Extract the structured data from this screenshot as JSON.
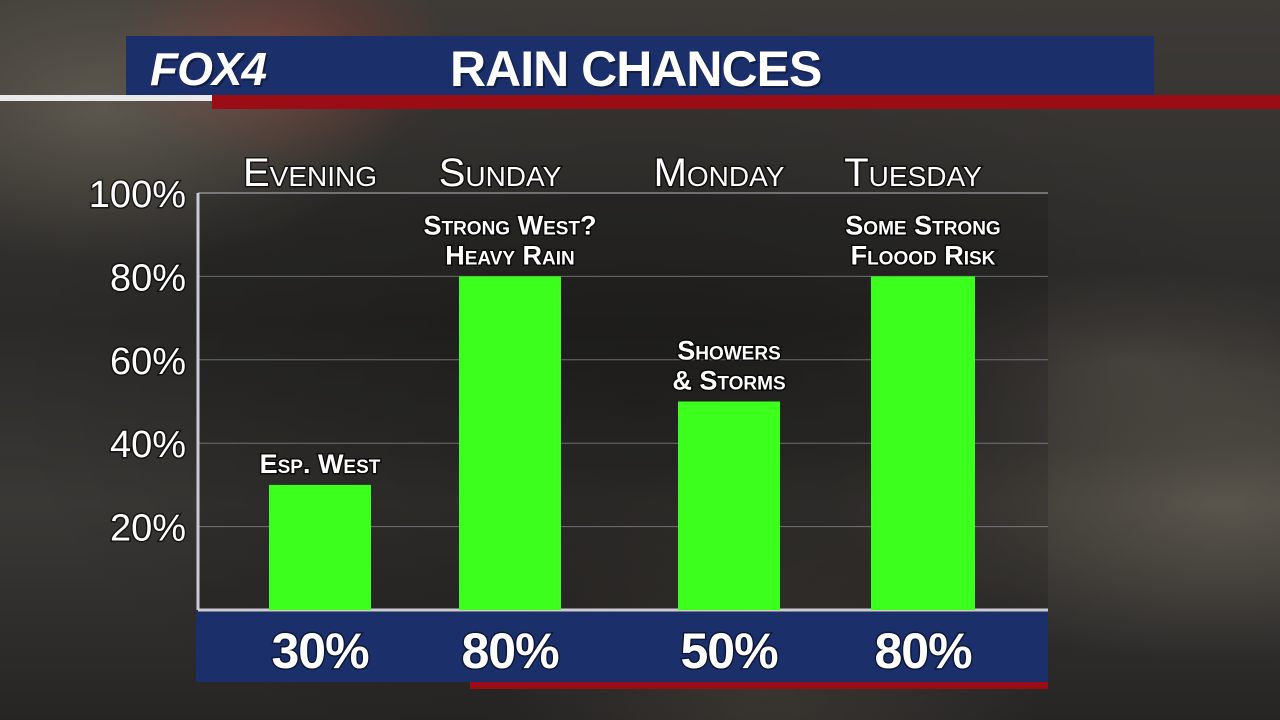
{
  "header": {
    "logo": "FOX4",
    "title": "RAIN CHANCES"
  },
  "chart_data": {
    "type": "bar",
    "title": "RAIN CHANCES",
    "categories": [
      "Evening",
      "Sunday",
      "Monday",
      "Tuesday"
    ],
    "values": [
      30,
      80,
      50,
      80
    ],
    "value_labels": [
      "30%",
      "80%",
      "50%",
      "80%"
    ],
    "annotations": [
      [
        "Esp. West"
      ],
      [
        "Strong West?",
        "Heavy Rain"
      ],
      [
        "Showers",
        "& Storms"
      ],
      [
        "Some Strong",
        "Floood Risk"
      ]
    ],
    "yticks": [
      "20%",
      "40%",
      "60%",
      "80%",
      "100%"
    ],
    "ytick_values": [
      20,
      40,
      60,
      80,
      100
    ],
    "ylim": [
      0,
      100
    ],
    "bar_color": "#3cff1e",
    "grid": true
  }
}
